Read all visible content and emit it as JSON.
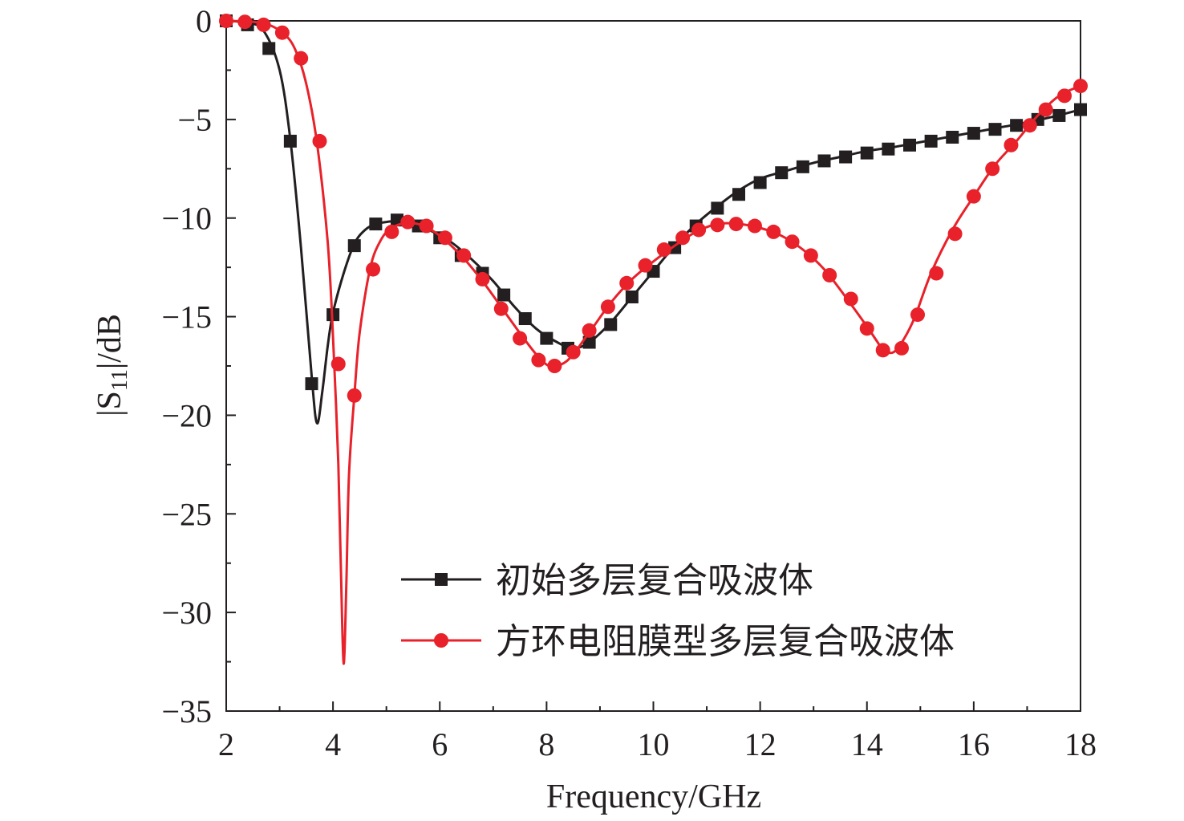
{
  "chart_data": {
    "type": "line",
    "title": "",
    "xlabel": "Frequency/GHz",
    "ylabel": {
      "prefix": "|S",
      "subscript": "11",
      "suffix": "|/dB"
    },
    "xlim": [
      2,
      18
    ],
    "ylim": [
      -35,
      0
    ],
    "xticks": [
      2,
      4,
      6,
      8,
      10,
      12,
      14,
      16,
      18
    ],
    "yticks": [
      0,
      -5,
      -10,
      -15,
      -20,
      -25,
      -30,
      -35
    ],
    "x_minor_step": 1,
    "y_minor_step": 2.5,
    "grid": false,
    "legend_position": "bottom-right",
    "series": [
      {
        "name": "初始多层复合吸波体",
        "color": "#231f20",
        "marker": "square",
        "curve": [
          [
            2,
            0
          ],
          [
            2.4,
            -0.1
          ],
          [
            2.7,
            -0.5
          ],
          [
            3.0,
            -2.5
          ],
          [
            3.2,
            -6
          ],
          [
            3.4,
            -11.5
          ],
          [
            3.6,
            -18
          ],
          [
            3.7,
            -20.4
          ],
          [
            3.8,
            -18.8
          ],
          [
            3.9,
            -16.5
          ],
          [
            4.0,
            -14.8
          ],
          [
            4.2,
            -12.8
          ],
          [
            4.4,
            -11.3
          ],
          [
            4.6,
            -10.6
          ],
          [
            4.8,
            -10.3
          ],
          [
            5.0,
            -10.2
          ],
          [
            5.2,
            -10.15
          ],
          [
            5.5,
            -10.3
          ],
          [
            5.8,
            -10.6
          ],
          [
            6.2,
            -11.2
          ],
          [
            6.6,
            -12.1
          ],
          [
            7.0,
            -13.2
          ],
          [
            7.4,
            -14.5
          ],
          [
            7.8,
            -15.6
          ],
          [
            8.2,
            -16.3
          ],
          [
            8.5,
            -16.6
          ],
          [
            8.8,
            -16.3
          ],
          [
            9.2,
            -15.3
          ],
          [
            9.6,
            -14
          ],
          [
            10.0,
            -12.7
          ],
          [
            10.4,
            -11.4
          ],
          [
            10.8,
            -10.3
          ],
          [
            11.2,
            -9.4
          ],
          [
            11.6,
            -8.6
          ],
          [
            12.0,
            -8.0
          ],
          [
            12.5,
            -7.6
          ],
          [
            13.0,
            -7.2
          ],
          [
            13.5,
            -6.9
          ],
          [
            14.0,
            -6.6
          ],
          [
            14.5,
            -6.4
          ],
          [
            15.0,
            -6.15
          ],
          [
            15.5,
            -5.9
          ],
          [
            16.0,
            -5.65
          ],
          [
            16.5,
            -5.4
          ],
          [
            17.0,
            -5.15
          ],
          [
            17.5,
            -4.85
          ],
          [
            18.0,
            -4.5
          ]
        ],
        "markers": [
          [
            2,
            0
          ],
          [
            2.4,
            -0.2
          ],
          [
            2.8,
            -1.4
          ],
          [
            3.2,
            -6.1
          ],
          [
            3.6,
            -18.4
          ],
          [
            4.0,
            -14.9
          ],
          [
            4.4,
            -11.4
          ],
          [
            4.8,
            -10.3
          ],
          [
            5.2,
            -10.1
          ],
          [
            5.6,
            -10.4
          ],
          [
            6.0,
            -11.0
          ],
          [
            6.4,
            -11.9
          ],
          [
            6.8,
            -12.8
          ],
          [
            7.2,
            -13.9
          ],
          [
            7.6,
            -15.1
          ],
          [
            8.0,
            -16.1
          ],
          [
            8.4,
            -16.6
          ],
          [
            8.8,
            -16.3
          ],
          [
            9.2,
            -15.4
          ],
          [
            9.6,
            -14.0
          ],
          [
            10.0,
            -12.7
          ],
          [
            10.4,
            -11.5
          ],
          [
            10.8,
            -10.4
          ],
          [
            11.2,
            -9.5
          ],
          [
            11.6,
            -8.8
          ],
          [
            12.0,
            -8.2
          ],
          [
            12.4,
            -7.7
          ],
          [
            12.8,
            -7.4
          ],
          [
            13.2,
            -7.1
          ],
          [
            13.6,
            -6.9
          ],
          [
            14.0,
            -6.7
          ],
          [
            14.4,
            -6.5
          ],
          [
            14.8,
            -6.3
          ],
          [
            15.2,
            -6.1
          ],
          [
            15.6,
            -5.9
          ],
          [
            16.0,
            -5.7
          ],
          [
            16.4,
            -5.5
          ],
          [
            16.8,
            -5.3
          ],
          [
            17.2,
            -5.0
          ],
          [
            17.6,
            -4.8
          ],
          [
            18.0,
            -4.5
          ]
        ]
      },
      {
        "name": "方环电阻膜型多层复合吸波体",
        "color": "#e8212a",
        "marker": "circle",
        "curve": [
          [
            2,
            0
          ],
          [
            2.5,
            -0.05
          ],
          [
            2.8,
            -0.2
          ],
          [
            3.1,
            -0.7
          ],
          [
            3.3,
            -1.5
          ],
          [
            3.5,
            -3.2
          ],
          [
            3.7,
            -6.2
          ],
          [
            3.9,
            -11.2
          ],
          [
            4.0,
            -16
          ],
          [
            4.1,
            -22.5
          ],
          [
            4.15,
            -28
          ],
          [
            4.2,
            -32.6
          ],
          [
            4.25,
            -28.5
          ],
          [
            4.3,
            -23
          ],
          [
            4.4,
            -19
          ],
          [
            4.5,
            -15.8
          ],
          [
            4.7,
            -12.5
          ],
          [
            4.9,
            -11.1
          ],
          [
            5.1,
            -10.5
          ],
          [
            5.4,
            -10.25
          ],
          [
            5.7,
            -10.4
          ],
          [
            6.0,
            -10.9
          ],
          [
            6.4,
            -11.9
          ],
          [
            6.8,
            -13.2
          ],
          [
            7.2,
            -14.7
          ],
          [
            7.6,
            -16.2
          ],
          [
            7.9,
            -17.2
          ],
          [
            8.1,
            -17.5
          ],
          [
            8.4,
            -17.2
          ],
          [
            8.8,
            -15.8
          ],
          [
            9.2,
            -14.3
          ],
          [
            9.6,
            -13.1
          ],
          [
            10.0,
            -12.2
          ],
          [
            10.4,
            -11.4
          ],
          [
            10.8,
            -10.7
          ],
          [
            11.2,
            -10.3
          ],
          [
            11.6,
            -10.3
          ],
          [
            12.0,
            -10.5
          ],
          [
            12.4,
            -10.9
          ],
          [
            12.8,
            -11.6
          ],
          [
            13.2,
            -12.6
          ],
          [
            13.6,
            -14
          ],
          [
            14.0,
            -15.5
          ],
          [
            14.2,
            -16.3
          ],
          [
            14.3,
            -16.7
          ],
          [
            14.5,
            -16.8
          ],
          [
            14.7,
            -16.1
          ],
          [
            14.9,
            -15
          ],
          [
            15.2,
            -12.8
          ],
          [
            15.6,
            -10.6
          ],
          [
            16.0,
            -8.9
          ],
          [
            16.4,
            -7.3
          ],
          [
            16.8,
            -6.1
          ],
          [
            17.2,
            -4.8
          ],
          [
            17.6,
            -3.8
          ],
          [
            18.0,
            -3.3
          ]
        ],
        "markers": [
          [
            2,
            0
          ],
          [
            2.35,
            -0.05
          ],
          [
            2.7,
            -0.2
          ],
          [
            3.05,
            -0.6
          ],
          [
            3.4,
            -1.9
          ],
          [
            3.75,
            -6.1
          ],
          [
            4.1,
            -17.4
          ],
          [
            4.4,
            -19.0
          ],
          [
            4.75,
            -12.6
          ],
          [
            5.1,
            -10.7
          ],
          [
            5.4,
            -10.2
          ],
          [
            5.75,
            -10.4
          ],
          [
            6.1,
            -11.0
          ],
          [
            6.45,
            -11.9
          ],
          [
            6.8,
            -13.1
          ],
          [
            7.15,
            -14.6
          ],
          [
            7.5,
            -16.1
          ],
          [
            7.85,
            -17.2
          ],
          [
            8.15,
            -17.5
          ],
          [
            8.5,
            -16.8
          ],
          [
            8.8,
            -15.7
          ],
          [
            9.15,
            -14.5
          ],
          [
            9.5,
            -13.3
          ],
          [
            9.85,
            -12.4
          ],
          [
            10.2,
            -11.6
          ],
          [
            10.55,
            -11.0
          ],
          [
            10.85,
            -10.6
          ],
          [
            11.2,
            -10.35
          ],
          [
            11.55,
            -10.3
          ],
          [
            11.9,
            -10.4
          ],
          [
            12.25,
            -10.7
          ],
          [
            12.6,
            -11.2
          ],
          [
            12.95,
            -11.9
          ],
          [
            13.3,
            -12.9
          ],
          [
            13.7,
            -14.1
          ],
          [
            14.0,
            -15.6
          ],
          [
            14.3,
            -16.7
          ],
          [
            14.65,
            -16.6
          ],
          [
            14.95,
            -14.9
          ],
          [
            15.3,
            -12.8
          ],
          [
            15.65,
            -10.8
          ],
          [
            16.0,
            -8.9
          ],
          [
            16.35,
            -7.5
          ],
          [
            16.7,
            -6.3
          ],
          [
            17.05,
            -5.3
          ],
          [
            17.35,
            -4.5
          ],
          [
            17.7,
            -3.8
          ],
          [
            18.0,
            -3.3
          ]
        ]
      }
    ]
  }
}
